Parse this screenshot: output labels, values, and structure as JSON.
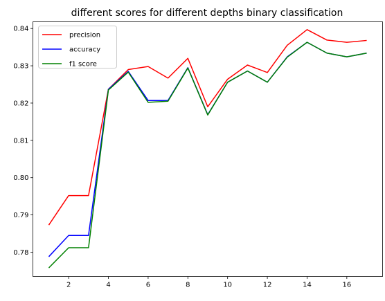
{
  "chart_data": {
    "type": "line",
    "title": "different scores for different depths binary classification",
    "xlabel": "",
    "ylabel": "",
    "x": [
      1,
      2,
      3,
      4,
      5,
      6,
      7,
      8,
      9,
      10,
      11,
      12,
      13,
      14,
      15,
      16,
      17
    ],
    "xlim": [
      0.2,
      17.8
    ],
    "ylim": [
      0.7735,
      0.8418
    ],
    "xticks": [
      2,
      4,
      6,
      8,
      10,
      12,
      14,
      16
    ],
    "xtick_labels": [
      "2",
      "4",
      "6",
      "8",
      "10",
      "12",
      "14",
      "16"
    ],
    "yticks": [
      0.78,
      0.79,
      0.8,
      0.81,
      0.82,
      0.83,
      0.84
    ],
    "ytick_labels": [
      "0.78",
      "0.79",
      "0.80",
      "0.81",
      "0.82",
      "0.83",
      "0.84"
    ],
    "grid": false,
    "legend_position": "top-left",
    "series": [
      {
        "name": "precision",
        "color": "#ff0000",
        "values": [
          0.7873,
          0.7952,
          0.7952,
          0.8237,
          0.829,
          0.8298,
          0.8267,
          0.832,
          0.819,
          0.8264,
          0.8302,
          0.8282,
          0.8355,
          0.8397,
          0.8369,
          0.8363,
          0.8368
        ]
      },
      {
        "name": "accuracy",
        "color": "#0000ff",
        "values": [
          0.7788,
          0.7845,
          0.7845,
          0.8237,
          0.8285,
          0.8207,
          0.8207,
          0.8295,
          0.8169,
          0.8256,
          0.8286,
          0.8256,
          0.8324,
          0.8363,
          0.8334,
          0.8324,
          0.8334
        ]
      },
      {
        "name": "f1 score",
        "color": "#008000",
        "values": [
          0.7758,
          0.7812,
          0.7812,
          0.8235,
          0.8283,
          0.8202,
          0.8205,
          0.8294,
          0.8168,
          0.8256,
          0.8286,
          0.8256,
          0.8323,
          0.8363,
          0.8334,
          0.8324,
          0.8334
        ]
      }
    ]
  }
}
